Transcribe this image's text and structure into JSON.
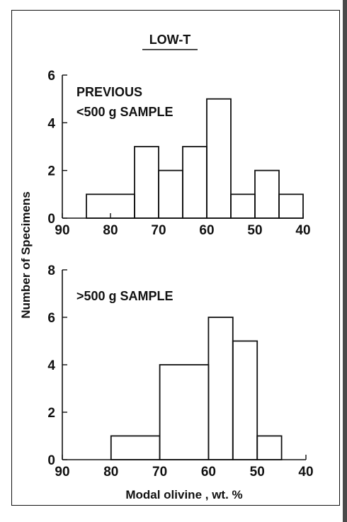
{
  "title": "LOW-T",
  "ylabel": "Number of Specimens",
  "xlabel": "Modal olivine , wt. %",
  "chart_data": [
    {
      "type": "bar",
      "subtype": "histogram",
      "annotation_lines": [
        "PREVIOUS",
        "<500 g SAMPLE"
      ],
      "bin_edges": [
        85,
        75,
        70,
        65,
        60,
        55,
        50,
        45,
        40
      ],
      "values": [
        1,
        3,
        2,
        3,
        5,
        1,
        2,
        1
      ],
      "xlim": [
        90,
        40
      ],
      "x_ticks": [
        90,
        80,
        70,
        60,
        50,
        40
      ],
      "ylim": [
        0,
        6
      ],
      "y_ticks": [
        0,
        2,
        4,
        6
      ]
    },
    {
      "type": "bar",
      "subtype": "histogram",
      "annotation_lines": [
        ">500 g SAMPLE"
      ],
      "bin_edges": [
        80,
        70,
        60,
        55,
        50,
        45
      ],
      "values": [
        1,
        4,
        6,
        5,
        1
      ],
      "xlim": [
        90,
        40
      ],
      "x_ticks": [
        90,
        80,
        70,
        60,
        50,
        40
      ],
      "ylim": [
        0,
        8
      ],
      "y_ticks": [
        0,
        2,
        4,
        6,
        8
      ]
    }
  ],
  "colors": {
    "ink": "#111111",
    "background": "#ffffff"
  }
}
